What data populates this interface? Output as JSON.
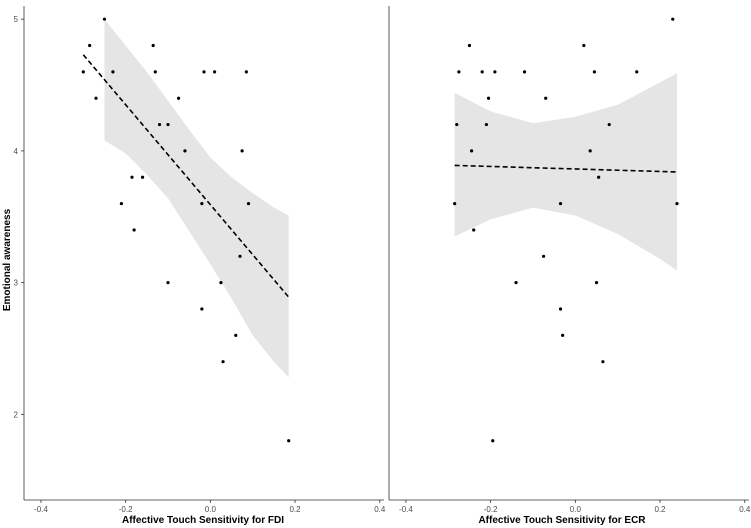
{
  "chart_data": [
    {
      "type": "scatter",
      "xlabel": "Affective Touch Sensitivity for FDI",
      "ylabel": "Emotional awareness",
      "xlim": [
        -0.44,
        0.41
      ],
      "ylim": [
        1.35,
        5.1
      ],
      "xticks": [
        -0.4,
        -0.2,
        0.0,
        0.2,
        0.4
      ],
      "xtick_labels": [
        "-0.4",
        "-0.2",
        "0.0",
        "0.2",
        "0.4"
      ],
      "yticks": [
        2,
        3,
        4,
        5
      ],
      "ytick_labels": [
        "2",
        "3",
        "4",
        "5"
      ],
      "grid": false,
      "points": [
        [
          -0.3,
          4.6
        ],
        [
          -0.285,
          4.8
        ],
        [
          -0.27,
          4.4
        ],
        [
          -0.25,
          5.0
        ],
        [
          -0.23,
          4.6
        ],
        [
          -0.21,
          3.6
        ],
        [
          -0.185,
          3.8
        ],
        [
          -0.18,
          3.4
        ],
        [
          -0.16,
          3.8
        ],
        [
          -0.135,
          4.8
        ],
        [
          -0.13,
          4.6
        ],
        [
          -0.12,
          4.2
        ],
        [
          -0.1,
          4.2
        ],
        [
          -0.1,
          3.0
        ],
        [
          -0.075,
          4.4
        ],
        [
          -0.06,
          4.0
        ],
        [
          -0.02,
          3.6
        ],
        [
          -0.015,
          4.6
        ],
        [
          -0.02,
          2.8
        ],
        [
          0.01,
          4.6
        ],
        [
          0.025,
          3.0
        ],
        [
          0.03,
          2.4
        ],
        [
          0.06,
          2.6
        ],
        [
          0.07,
          3.2
        ],
        [
          0.075,
          4.0
        ],
        [
          0.085,
          4.6
        ],
        [
          0.09,
          3.6
        ],
        [
          0.185,
          1.8
        ]
      ],
      "fit": {
        "x": [
          -0.3,
          0.185
        ],
        "y": [
          4.73,
          2.89
        ]
      },
      "ci_band": {
        "x": [
          -0.25,
          -0.2,
          -0.15,
          -0.1,
          -0.05,
          0.0,
          0.05,
          0.1,
          0.15,
          0.185
        ],
        "upper": [
          5.0,
          4.8,
          4.6,
          4.38,
          4.16,
          3.95,
          3.8,
          3.68,
          3.57,
          3.51
        ],
        "lower": [
          4.08,
          3.98,
          3.82,
          3.64,
          3.39,
          3.14,
          2.88,
          2.6,
          2.4,
          2.28
        ]
      }
    },
    {
      "type": "scatter",
      "xlabel": "Affective Touch Sensitivity for ECR",
      "ylabel": "",
      "xlim": [
        -0.44,
        0.41
      ],
      "ylim": [
        1.35,
        5.1
      ],
      "xticks": [
        -0.4,
        -0.2,
        0.0,
        0.2,
        0.4
      ],
      "xtick_labels": [
        "-0.4",
        "-0.2",
        "0.0",
        "0.2",
        "0.4"
      ],
      "grid": false,
      "points": [
        [
          -0.285,
          3.6
        ],
        [
          -0.28,
          4.2
        ],
        [
          -0.275,
          4.6
        ],
        [
          -0.25,
          4.8
        ],
        [
          -0.245,
          4.0
        ],
        [
          -0.24,
          3.4
        ],
        [
          -0.22,
          4.6
        ],
        [
          -0.21,
          4.2
        ],
        [
          -0.205,
          4.4
        ],
        [
          -0.195,
          1.8
        ],
        [
          -0.19,
          4.6
        ],
        [
          -0.14,
          3.0
        ],
        [
          -0.12,
          4.6
        ],
        [
          -0.075,
          3.2
        ],
        [
          -0.07,
          4.4
        ],
        [
          -0.035,
          2.8
        ],
        [
          -0.03,
          2.6
        ],
        [
          -0.035,
          3.6
        ],
        [
          0.02,
          4.8
        ],
        [
          0.035,
          4.0
        ],
        [
          0.045,
          4.6
        ],
        [
          0.05,
          3.0
        ],
        [
          0.055,
          3.8
        ],
        [
          0.065,
          2.4
        ],
        [
          0.08,
          4.2
        ],
        [
          0.145,
          4.6
        ],
        [
          0.23,
          5.0
        ],
        [
          0.24,
          3.6
        ]
      ],
      "fit": {
        "x": [
          -0.285,
          0.24
        ],
        "y": [
          3.89,
          3.84
        ]
      },
      "ci_band": {
        "x": [
          -0.285,
          -0.2,
          -0.1,
          0.0,
          0.1,
          0.2,
          0.24
        ],
        "upper": [
          4.44,
          4.3,
          4.21,
          4.26,
          4.35,
          4.52,
          4.59
        ],
        "lower": [
          3.35,
          3.48,
          3.57,
          3.51,
          3.37,
          3.18,
          3.09
        ]
      }
    }
  ]
}
